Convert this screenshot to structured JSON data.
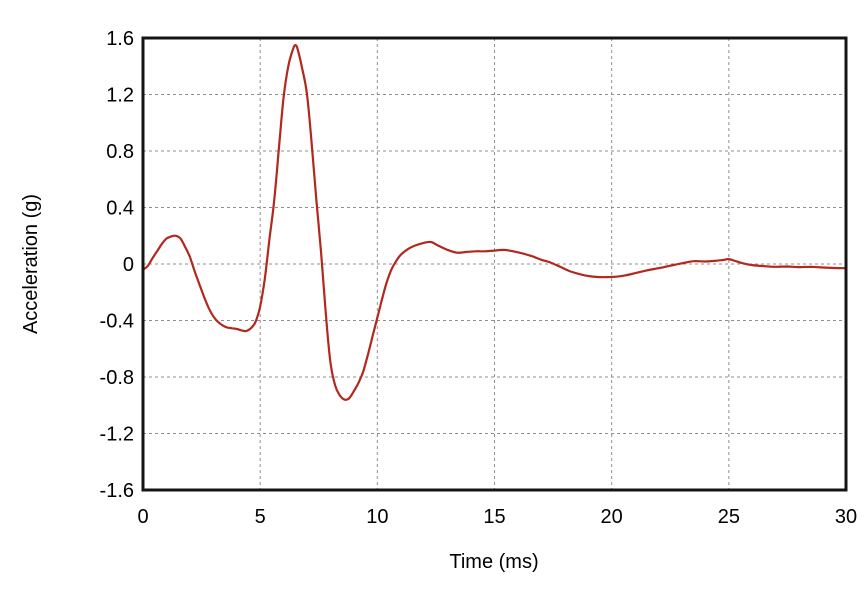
{
  "chart_data": {
    "type": "line",
    "title": "",
    "xlabel": "Time (ms)",
    "ylabel": "Acceleration (g)",
    "xlim": [
      0,
      30
    ],
    "ylim": [
      -1.6,
      1.6
    ],
    "xticks": [
      0,
      5,
      10,
      15,
      20,
      25,
      30
    ],
    "xtick_labels": [
      "0",
      "5",
      "10",
      "15",
      "20",
      "25",
      "30"
    ],
    "yticks": [
      1.6,
      1.2,
      0.8,
      0.4,
      0,
      -0.4,
      -0.8,
      -1.2,
      -1.6
    ],
    "ytick_labels": [
      "1.6",
      "1.2",
      "0.8",
      "0.4",
      "0",
      "-0.4",
      "-0.8",
      "-1.2",
      "-1.6"
    ],
    "grid": "dashed",
    "legend": "none",
    "series": [
      {
        "name": "acceleration",
        "color": "#b1281e",
        "points": [
          [
            0.0,
            -0.04
          ],
          [
            0.2,
            -0.015
          ],
          [
            0.4,
            0.04
          ],
          [
            0.6,
            0.09
          ],
          [
            0.8,
            0.14
          ],
          [
            1.0,
            0.18
          ],
          [
            1.2,
            0.195
          ],
          [
            1.4,
            0.2
          ],
          [
            1.6,
            0.18
          ],
          [
            1.8,
            0.12
          ],
          [
            2.0,
            0.05
          ],
          [
            2.2,
            -0.05
          ],
          [
            2.4,
            -0.14
          ],
          [
            2.6,
            -0.23
          ],
          [
            2.8,
            -0.31
          ],
          [
            3.0,
            -0.37
          ],
          [
            3.2,
            -0.41
          ],
          [
            3.4,
            -0.435
          ],
          [
            3.6,
            -0.45
          ],
          [
            3.8,
            -0.455
          ],
          [
            4.0,
            -0.46
          ],
          [
            4.2,
            -0.47
          ],
          [
            4.4,
            -0.475
          ],
          [
            4.6,
            -0.455
          ],
          [
            4.8,
            -0.41
          ],
          [
            5.0,
            -0.3
          ],
          [
            5.2,
            -0.1
          ],
          [
            5.4,
            0.18
          ],
          [
            5.6,
            0.45
          ],
          [
            5.8,
            0.82
          ],
          [
            6.0,
            1.18
          ],
          [
            6.2,
            1.4
          ],
          [
            6.4,
            1.52
          ],
          [
            6.5,
            1.55
          ],
          [
            6.6,
            1.52
          ],
          [
            6.8,
            1.38
          ],
          [
            7.0,
            1.2
          ],
          [
            7.2,
            0.85
          ],
          [
            7.4,
            0.45
          ],
          [
            7.6,
            0.08
          ],
          [
            7.8,
            -0.35
          ],
          [
            8.0,
            -0.7
          ],
          [
            8.2,
            -0.86
          ],
          [
            8.4,
            -0.93
          ],
          [
            8.6,
            -0.96
          ],
          [
            8.8,
            -0.95
          ],
          [
            9.0,
            -0.9
          ],
          [
            9.2,
            -0.84
          ],
          [
            9.4,
            -0.76
          ],
          [
            9.6,
            -0.64
          ],
          [
            9.8,
            -0.51
          ],
          [
            10.0,
            -0.38
          ],
          [
            10.2,
            -0.25
          ],
          [
            10.4,
            -0.13
          ],
          [
            10.6,
            -0.04
          ],
          [
            10.8,
            0.02
          ],
          [
            11.0,
            0.065
          ],
          [
            11.3,
            0.105
          ],
          [
            11.6,
            0.13
          ],
          [
            12.0,
            0.15
          ],
          [
            12.3,
            0.155
          ],
          [
            12.6,
            0.13
          ],
          [
            13.0,
            0.1
          ],
          [
            13.4,
            0.08
          ],
          [
            13.8,
            0.085
          ],
          [
            14.2,
            0.09
          ],
          [
            14.6,
            0.09
          ],
          [
            15.0,
            0.095
          ],
          [
            15.4,
            0.1
          ],
          [
            15.8,
            0.09
          ],
          [
            16.2,
            0.075
          ],
          [
            16.6,
            0.055
          ],
          [
            17.0,
            0.03
          ],
          [
            17.4,
            0.01
          ],
          [
            17.8,
            -0.02
          ],
          [
            18.2,
            -0.05
          ],
          [
            18.6,
            -0.07
          ],
          [
            19.0,
            -0.085
          ],
          [
            19.4,
            -0.092
          ],
          [
            19.8,
            -0.093
          ],
          [
            20.2,
            -0.09
          ],
          [
            20.6,
            -0.08
          ],
          [
            21.0,
            -0.065
          ],
          [
            21.5,
            -0.045
          ],
          [
            22.0,
            -0.03
          ],
          [
            22.5,
            -0.012
          ],
          [
            23.0,
            0.005
          ],
          [
            23.5,
            0.02
          ],
          [
            24.0,
            0.018
          ],
          [
            24.4,
            0.022
          ],
          [
            24.8,
            0.03
          ],
          [
            25.0,
            0.035
          ],
          [
            25.3,
            0.02
          ],
          [
            25.6,
            0.005
          ],
          [
            26.0,
            -0.008
          ],
          [
            26.5,
            -0.015
          ],
          [
            27.0,
            -0.02
          ],
          [
            27.5,
            -0.018
          ],
          [
            28.0,
            -0.022
          ],
          [
            28.5,
            -0.02
          ],
          [
            29.0,
            -0.025
          ],
          [
            29.5,
            -0.028
          ],
          [
            30.0,
            -0.03
          ]
        ]
      }
    ]
  },
  "colors": {
    "background": "#ffffff",
    "frame": "#141414",
    "grid": "#8f8f8f",
    "text": "#000000",
    "line": "#b1281e"
  }
}
